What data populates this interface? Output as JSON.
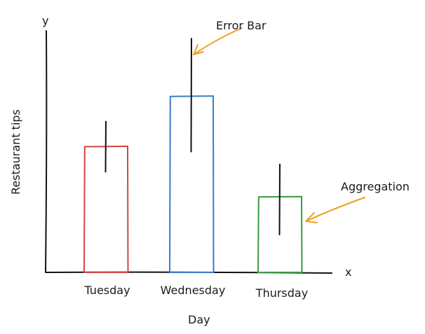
{
  "chart_data": {
    "type": "bar",
    "xlabel": "Day",
    "ylabel": "Restaurant tips",
    "x_axis_marker": "x",
    "y_axis_marker": "y",
    "categories": [
      "Tuesday",
      "Wednesday",
      "Thursday"
    ],
    "values": [
      50,
      70,
      30
    ],
    "error_low": [
      40,
      48,
      15
    ],
    "error_high": [
      60,
      93,
      43
    ],
    "bar_colors": [
      "#d04545",
      "#3a7bc8",
      "#3a9a45"
    ],
    "grid": false,
    "annotations": [
      {
        "text": "Error Bar",
        "color": "#f0a020",
        "points_to": "Wednesday error bar"
      },
      {
        "text": "Aggregation",
        "color": "#f0a020",
        "points_to": "Thursday bar"
      }
    ]
  }
}
